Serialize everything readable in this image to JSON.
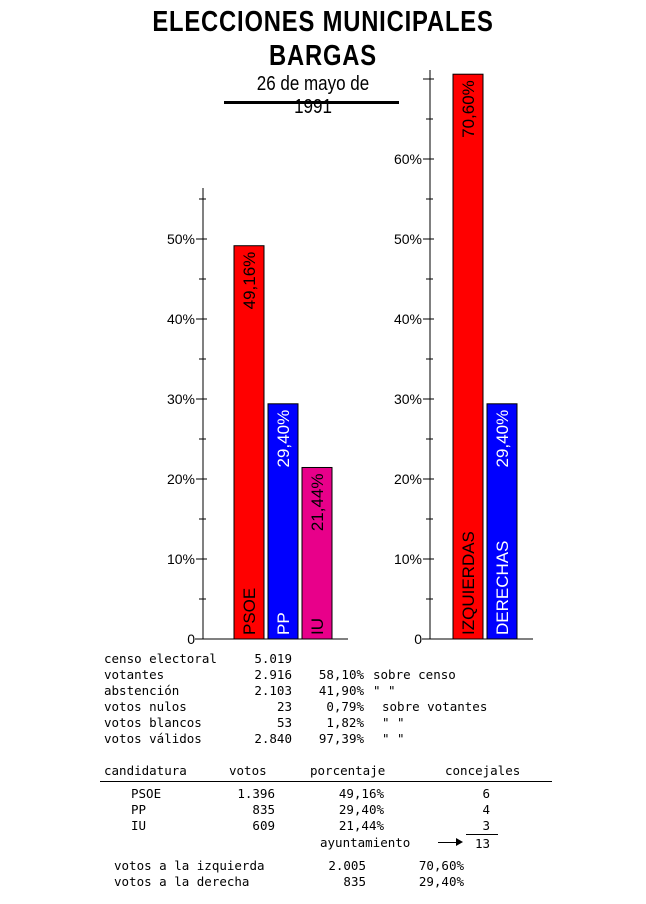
{
  "header": {
    "title_line1": "ELECCIONES  MUNICIPALES",
    "title_line2": "BARGAS",
    "date": "26 de mayo de 1991"
  },
  "chart_data": [
    {
      "type": "bar",
      "categories": [
        "PSOE",
        "PP",
        "IU"
      ],
      "values": [
        49.16,
        29.4,
        21.44
      ],
      "value_labels": [
        "49,16%",
        "29,40%",
        "21,44%"
      ],
      "colors": [
        "#ff0000",
        "#0000ff",
        "#e8008a"
      ],
      "label_colors": [
        "#000000",
        "#ffffff",
        "#000000"
      ],
      "ylim": [
        0,
        56
      ],
      "yticks": [
        0,
        10,
        20,
        30,
        40,
        50
      ],
      "ytick_labels": [
        "0",
        "10%",
        "20%",
        "30%",
        "40%",
        "50%"
      ],
      "grid": false
    },
    {
      "type": "bar",
      "categories": [
        "IZQUIERDAS",
        "DERECHAS"
      ],
      "values": [
        70.6,
        29.4
      ],
      "value_labels": [
        "70,60%",
        "29,40%"
      ],
      "colors": [
        "#ff0000",
        "#0000ff"
      ],
      "label_colors": [
        "#000000",
        "#ffffff"
      ],
      "ylim": [
        0,
        71
      ],
      "yticks": [
        0,
        10,
        20,
        30,
        40,
        50,
        60
      ],
      "ytick_labels": [
        "0",
        "10%",
        "20%",
        "30%",
        "40%",
        "50%",
        "60%"
      ],
      "grid": false
    }
  ],
  "stats": [
    {
      "label": "censo electoral",
      "value": "5.019",
      "pct": "",
      "note": ""
    },
    {
      "label": "votantes",
      "value": "2.916",
      "pct": "58,10%",
      "note": "sobre censo"
    },
    {
      "label": "abstención",
      "value": "2.103",
      "pct": "41,90%",
      "note": "\"     \""
    },
    {
      "label": "votos nulos",
      "value": "23",
      "pct": "0,79%",
      "note": "sobre votantes"
    },
    {
      "label": "votos blancos",
      "value": "53",
      "pct": "1,82%",
      "note": "\"       \""
    },
    {
      "label": "votos válidos",
      "value": "2.840",
      "pct": "97,39%",
      "note": "\"       \""
    }
  ],
  "results_table": {
    "headers": [
      "candidatura",
      "votos",
      "porcentaje",
      "concejales"
    ],
    "rows": [
      {
        "party": "PSOE",
        "votes": "1.396",
        "pct": "49,16%",
        "seats": "6"
      },
      {
        "party": "PP",
        "votes": "835",
        "pct": "29,40%",
        "seats": "4"
      },
      {
        "party": "IU",
        "votes": "609",
        "pct": "21,44%",
        "seats": "3"
      }
    ],
    "total_label": "ayuntamiento",
    "total_seats": "13"
  },
  "blocs": [
    {
      "label": "votos a la izquierda",
      "votes": "2.005",
      "pct": "70,60%"
    },
    {
      "label": "votos a la derecha",
      "votes": "835",
      "pct": "29,40%"
    }
  ]
}
